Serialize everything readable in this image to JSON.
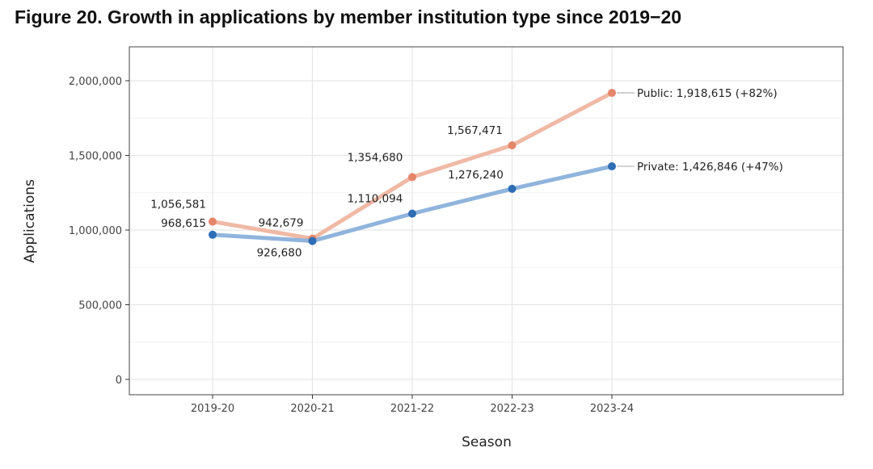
{
  "title": "Figure 20. Growth in applications by member institution type since 2019−20",
  "chart_data": {
    "type": "line",
    "title": "Figure 20. Growth in applications by member institution type since 2019−20",
    "xlabel": "Season",
    "ylabel": "Applications",
    "categories": [
      "2019-20",
      "2020-21",
      "2021-22",
      "2022-23",
      "2023-24"
    ],
    "yticks": [
      0,
      500000,
      1000000,
      1500000,
      2000000
    ],
    "ytick_labels": [
      "0",
      "500,000",
      "1,000,000",
      "1,500,000",
      "2,000,000"
    ],
    "ylim": [
      -100000,
      2230000
    ],
    "grid": true,
    "series": [
      {
        "name": "Public",
        "values": [
          1056581,
          942679,
          1354680,
          1567471,
          1918615
        ],
        "point_labels": [
          "1,056,581",
          "942,679",
          "1,354,680",
          "1,567,471"
        ],
        "end_label": "Public: 1,918,615 (+82%)",
        "line_color": "#f0b9a5",
        "point_color": "#e4866a"
      },
      {
        "name": "Private",
        "values": [
          968615,
          926680,
          1110094,
          1276240,
          1426846
        ],
        "point_labels": [
          "968,615",
          "926,680",
          "1,110,094",
          "1,276,240"
        ],
        "end_label": "Private: 1,426,846 (+47%)",
        "line_color": "#8fb4dd",
        "point_color": "#2f6db5"
      }
    ]
  }
}
